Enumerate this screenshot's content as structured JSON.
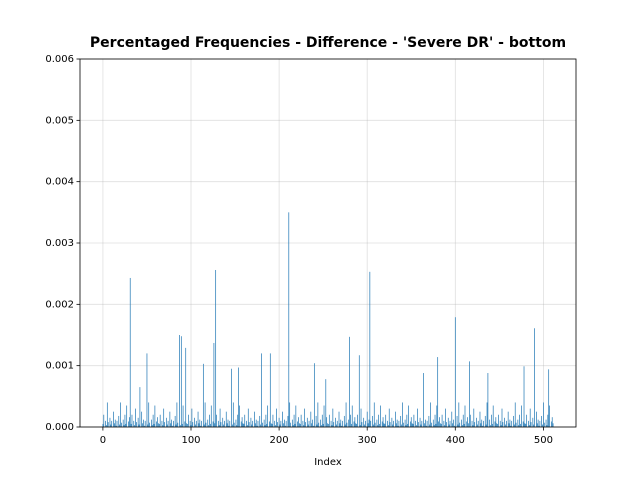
{
  "chart_data": {
    "type": "bar",
    "title": "Percentaged Frequencies - Difference - 'Severe DR' - bottom",
    "xlabel": "Index",
    "color": "#1f77b4",
    "grid": true,
    "xlim": [
      -26,
      537
    ],
    "xticks": [
      0,
      100,
      200,
      300,
      400,
      500
    ],
    "ylim": [
      0,
      0.006
    ],
    "yticks": [
      {
        "value": 0,
        "label": "0.000"
      },
      {
        "value": 0.001,
        "label": "0.001"
      },
      {
        "value": 0.002,
        "label": "0.002"
      },
      {
        "value": 0.003,
        "label": "0.003"
      },
      {
        "value": 0.004,
        "label": "0.004"
      },
      {
        "value": 0.005,
        "label": "0.005"
      },
      {
        "value": 0.006,
        "label": "0.006"
      }
    ],
    "values": [
      5e-05,
      0.0002,
      0,
      0.0001,
      3e-05,
      0.0004,
      8e-05,
      0,
      0.00015,
      4e-05,
      0.0001,
      0,
      0.00025,
      6e-05,
      0.00012,
      2e-05,
      0.0001,
      0,
      0.00018,
      4e-05,
      0.0004,
      7e-05,
      0,
      0.00012,
      3e-05,
      0.0002,
      5e-05,
      0.00035,
      0,
      9e-05,
      0.00016,
      0.00243,
      5e-05,
      0.0002,
      0,
      0.0001,
      3e-05,
      0.0003,
      8e-05,
      0,
      0.00015,
      4e-05,
      0.00065,
      0,
      0.00025,
      6e-05,
      0.00012,
      2e-05,
      0.0001,
      0,
      0.0012,
      4e-05,
      0.0004,
      7e-05,
      0,
      0.00012,
      3e-05,
      0.0002,
      5e-05,
      0.00035,
      0,
      9e-05,
      0.00016,
      6e-05,
      5e-05,
      0.0002,
      0,
      0.0001,
      3e-05,
      0.0003,
      8e-05,
      0,
      0.00015,
      4e-05,
      0.0001,
      0,
      0.00025,
      6e-05,
      0.00012,
      2e-05,
      0.0001,
      0,
      0.00018,
      4e-05,
      0.0004,
      7e-05,
      0,
      0.0015,
      3e-05,
      0.00148,
      5e-05,
      0.00035,
      0,
      9e-05,
      0.00129,
      6e-05,
      5e-05,
      0.0002,
      0,
      0.0001,
      3e-05,
      0.0003,
      8e-05,
      0,
      0.00015,
      4e-05,
      0.0001,
      0,
      0.00025,
      6e-05,
      0.00012,
      2e-05,
      0.0001,
      0,
      0.00103,
      4e-05,
      0.0004,
      7e-05,
      0,
      0.00012,
      3e-05,
      0.0002,
      5e-05,
      0.00035,
      0,
      9e-05,
      0.00137,
      6e-05,
      0.00256,
      0.0002,
      0,
      0.0001,
      3e-05,
      0.0003,
      8e-05,
      0,
      0.00015,
      4e-05,
      0.0001,
      0,
      0.00025,
      6e-05,
      0.00012,
      2e-05,
      0.0001,
      0,
      0.00095,
      4e-05,
      0.0004,
      7e-05,
      0,
      0.00012,
      3e-05,
      0.0002,
      0.00097,
      0.00035,
      0,
      9e-05,
      0.00016,
      6e-05,
      5e-05,
      0.0002,
      0,
      0.0001,
      3e-05,
      0.0003,
      8e-05,
      0,
      0.00015,
      4e-05,
      0.0001,
      0,
      0.00025,
      6e-05,
      0.00012,
      2e-05,
      0.0001,
      0,
      0.00018,
      4e-05,
      0.0012,
      7e-05,
      0,
      0.00012,
      3e-05,
      0.0002,
      5e-05,
      0.00035,
      0,
      9e-05,
      0.0012,
      6e-05,
      5e-05,
      0.0002,
      0,
      0.0001,
      3e-05,
      0.0003,
      8e-05,
      0,
      0.00015,
      4e-05,
      0.0001,
      0,
      0.00025,
      6e-05,
      0.00012,
      2e-05,
      0.0001,
      0,
      0.00018,
      0.0035,
      0.0004,
      7e-05,
      0,
      0.00012,
      3e-05,
      0.0002,
      5e-05,
      0.00035,
      0,
      9e-05,
      0.00016,
      6e-05,
      5e-05,
      0.0002,
      0,
      0.0001,
      3e-05,
      0.0003,
      8e-05,
      0,
      0.00015,
      4e-05,
      0.0001,
      0,
      0.00025,
      6e-05,
      0.00012,
      2e-05,
      0.00104,
      0,
      0.00018,
      4e-05,
      0.0004,
      7e-05,
      0,
      0.00012,
      3e-05,
      0.0002,
      5e-05,
      0.00035,
      0,
      0.00078,
      0.00016,
      6e-05,
      5e-05,
      0.0002,
      0,
      0.0001,
      3e-05,
      0.0003,
      8e-05,
      0,
      0.00015,
      4e-05,
      0.0001,
      0,
      0.00025,
      6e-05,
      0.00012,
      2e-05,
      0.0001,
      0,
      0.00018,
      4e-05,
      0.0004,
      7e-05,
      0,
      0.00012,
      0.00147,
      0.0002,
      5e-05,
      0.00035,
      0,
      9e-05,
      0.00016,
      6e-05,
      5e-05,
      0.0002,
      0,
      0.00117,
      3e-05,
      0.0003,
      8e-05,
      0,
      0.00015,
      4e-05,
      0.0001,
      0,
      0.00025,
      6e-05,
      0.00012,
      0.00253,
      0.0001,
      0,
      0.00018,
      4e-05,
      0.0004,
      7e-05,
      0,
      0.00012,
      3e-05,
      0.0002,
      5e-05,
      0.00035,
      0,
      9e-05,
      0.00016,
      6e-05,
      5e-05,
      0.0002,
      0,
      0.0001,
      3e-05,
      0.0003,
      8e-05,
      0,
      0.00015,
      4e-05,
      0.0001,
      0,
      0.00025,
      6e-05,
      0.00012,
      2e-05,
      0.0001,
      0,
      0.00018,
      4e-05,
      0.0004,
      7e-05,
      0,
      0.00012,
      3e-05,
      0.0002,
      5e-05,
      0.00035,
      0,
      9e-05,
      0.00016,
      6e-05,
      5e-05,
      0.0002,
      0,
      0.0001,
      3e-05,
      0.0003,
      8e-05,
      0,
      0.00015,
      4e-05,
      0.0001,
      0,
      0.00088,
      6e-05,
      0.00012,
      2e-05,
      0.0001,
      0,
      0.00018,
      4e-05,
      0.0004,
      7e-05,
      0,
      0.00012,
      3e-05,
      0.0002,
      5e-05,
      0.00035,
      0.00114,
      9e-05,
      0.00016,
      6e-05,
      5e-05,
      0.0002,
      0,
      0.0001,
      3e-05,
      0.0003,
      8e-05,
      0,
      0.00015,
      4e-05,
      0.0001,
      0,
      0.00025,
      6e-05,
      0.00012,
      2e-05,
      0.00179,
      0,
      0.00018,
      4e-05,
      0.0004,
      7e-05,
      0,
      0.00012,
      3e-05,
      0.0002,
      5e-05,
      0.00035,
      0,
      9e-05,
      0.00016,
      6e-05,
      0.00107,
      0.0002,
      0,
      0.0001,
      3e-05,
      0.0003,
      8e-05,
      0,
      0.00015,
      4e-05,
      0.0001,
      0,
      0.00025,
      6e-05,
      0.00012,
      2e-05,
      0.0001,
      0,
      0.00018,
      4e-05,
      0.0004,
      0.00088,
      0,
      0.00012,
      3e-05,
      0.0002,
      5e-05,
      0.00035,
      0,
      9e-05,
      0.00016,
      6e-05,
      5e-05,
      0.0002,
      0,
      0.0001,
      3e-05,
      0.0003,
      8e-05,
      0,
      0.00015,
      4e-05,
      0.0001,
      0,
      0.00025,
      6e-05,
      0.00012,
      2e-05,
      0.0001,
      0,
      0.00018,
      4e-05,
      0.0004,
      7e-05,
      0,
      0.00012,
      3e-05,
      0.0002,
      5e-05,
      0.00035,
      0,
      9e-05,
      0.00099,
      6e-05,
      5e-05,
      0.0002,
      0,
      0.0001,
      3e-05,
      0.0003,
      8e-05,
      0,
      0.00015,
      4e-05,
      0.00161,
      0,
      0.00025,
      6e-05,
      0.00012,
      2e-05,
      0.0001,
      0,
      0.00018,
      4e-05,
      0.0004,
      7e-05,
      0,
      0.00012,
      3e-05,
      0.0002,
      0.00094,
      0.00035,
      0,
      9e-05,
      0.00016,
      6e-05
    ]
  }
}
